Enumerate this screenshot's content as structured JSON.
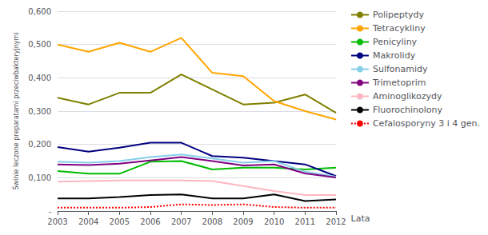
{
  "chart_data": {
    "type": "line",
    "ylabel": "Świnie leczone preparatami przeciwbakteryjnymi",
    "xlabel": "Lata",
    "x": [
      2003,
      2004,
      2005,
      2006,
      2007,
      2008,
      2009,
      2010,
      2011,
      2012
    ],
    "series": [
      {
        "name": "Polipeptydy",
        "color": "#808000",
        "line_style": "solid",
        "values": [
          0.34,
          0.32,
          0.355,
          0.355,
          0.41,
          0.365,
          0.32,
          0.325,
          0.35,
          0.295
        ]
      },
      {
        "name": "Tetracykliny",
        "color": "#FFA500",
        "line_style": "solid",
        "values": [
          0.5,
          0.478,
          0.505,
          0.478,
          0.52,
          0.415,
          0.405,
          0.33,
          0.3,
          0.275
        ]
      },
      {
        "name": "Penicyliny",
        "color": "#00BB00",
        "line_style": "solid",
        "values": [
          0.12,
          0.112,
          0.112,
          0.148,
          0.15,
          0.125,
          0.13,
          0.13,
          0.125,
          0.13
        ]
      },
      {
        "name": "Makrolidy",
        "color": "#000080",
        "line_style": "solid",
        "values": [
          0.192,
          0.178,
          0.19,
          0.205,
          0.205,
          0.165,
          0.16,
          0.15,
          0.14,
          0.105
        ]
      },
      {
        "name": "Sulfonamidy",
        "color": "#87CEEB",
        "line_style": "solid",
        "values": [
          0.148,
          0.145,
          0.15,
          0.162,
          0.17,
          0.158,
          0.145,
          0.15,
          0.118,
          0.103
        ]
      },
      {
        "name": "Trimetoprim",
        "color": "#800080",
        "line_style": "solid",
        "values": [
          0.14,
          0.138,
          0.142,
          0.152,
          0.162,
          0.15,
          0.137,
          0.14,
          0.113,
          0.101
        ]
      },
      {
        "name": "Aminoglikozydy",
        "color": "#FFB6C1",
        "line_style": "solid",
        "values": [
          0.088,
          0.09,
          0.092,
          0.092,
          0.092,
          0.09,
          0.075,
          0.06,
          0.048,
          0.048
        ]
      },
      {
        "name": "Fluorochinolony",
        "color": "#000000",
        "line_style": "solid",
        "values": [
          0.038,
          0.038,
          0.042,
          0.048,
          0.05,
          0.038,
          0.038,
          0.05,
          0.03,
          0.035
        ]
      },
      {
        "name": "Cefalosporyny 3 i 4 gen.",
        "color": "#FF0000",
        "line_style": "dotted",
        "values": [
          0.01,
          0.01,
          0.01,
          0.012,
          0.02,
          0.018,
          0.02,
          0.012,
          0.01,
          0.01
        ]
      }
    ],
    "xlim": [
      2003,
      2012
    ],
    "xticks": [
      2003,
      2004,
      2005,
      2006,
      2007,
      2008,
      2009,
      2010,
      2011,
      2012
    ],
    "ylim": [
      0,
      0.6
    ],
    "yticks": [
      {
        "value": 0,
        "label": "-"
      },
      {
        "value": 0.1,
        "label": "0,100"
      },
      {
        "value": 0.2,
        "label": "0,200"
      },
      {
        "value": 0.3,
        "label": "0,300"
      },
      {
        "value": 0.4,
        "label": "0,400"
      },
      {
        "value": 0.5,
        "label": "0,500"
      },
      {
        "value": 0.6,
        "label": "0,600"
      }
    ],
    "grid": true,
    "legend": "right"
  }
}
